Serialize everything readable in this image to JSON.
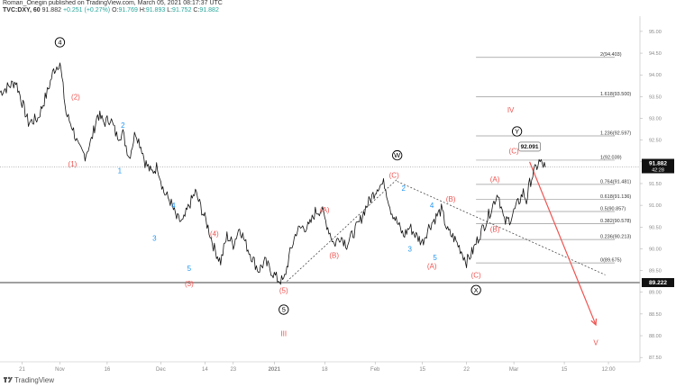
{
  "header": {
    "line1": "Roman_Onegin published on TradingView.com, March 05, 2021 08:17:37 UTC",
    "symbol": "TVC:DXY, 60",
    "last": "91.882",
    "change": "+0.251 (+0.27%)",
    "o_label": "O:",
    "o_value": "91.769",
    "h_label": "H:",
    "h_value": "91.893",
    "l_label": "L:",
    "l_value": "91.752",
    "c_label": "C:",
    "c_value": "91.882"
  },
  "branding": {
    "text": "TradingView"
  },
  "colors": {
    "price": "#111111",
    "red": "#ef5350",
    "blue": "#2196f3",
    "axis": "#888888",
    "black": "#000000",
    "fib": "#999999"
  },
  "chart_data": {
    "type": "line",
    "title": "TVC:DXY, 60",
    "x_axis_labels": [
      {
        "t": 2,
        "label": "21"
      },
      {
        "t": 14,
        "label": "Nov"
      },
      {
        "t": 29,
        "label": "16"
      },
      {
        "t": 46,
        "label": "Dec"
      },
      {
        "t": 60,
        "label": "14"
      },
      {
        "t": 69,
        "label": "23"
      },
      {
        "t": 82,
        "label": "2021"
      },
      {
        "t": 98,
        "label": "18"
      },
      {
        "t": 114,
        "label": "Feb"
      },
      {
        "t": 129,
        "label": "15"
      },
      {
        "t": 143,
        "label": "22"
      },
      {
        "t": 158,
        "label": "Mar"
      },
      {
        "t": 174,
        "label": "15"
      },
      {
        "t": 188,
        "label": "12:00"
      }
    ],
    "xlim": [
      -5,
      198
    ],
    "y_ticks": [
      87.5,
      88.0,
      88.5,
      89.0,
      89.5,
      90.0,
      90.5,
      91.0,
      91.5,
      92.0,
      92.5,
      93.0,
      93.5,
      94.0,
      94.5,
      95.0
    ],
    "ylim": [
      87.4,
      95.35
    ],
    "price_x": [
      -5,
      0,
      4,
      7,
      10,
      12,
      14,
      16,
      18,
      20,
      22,
      24,
      26,
      28,
      30,
      32,
      34,
      36,
      38,
      40,
      41,
      43,
      45,
      47,
      49,
      51,
      53,
      55,
      57,
      59,
      61,
      63,
      65,
      67,
      69,
      71,
      73,
      75,
      77,
      79,
      81,
      83,
      85,
      87,
      89,
      91,
      93,
      95,
      97,
      99,
      101,
      103,
      105,
      107,
      109,
      111,
      113,
      115,
      117,
      119,
      121,
      123,
      125,
      127,
      129,
      131,
      133,
      135,
      137,
      139,
      141,
      143,
      145,
      147,
      149,
      151,
      153,
      155,
      157,
      159,
      161,
      162,
      163,
      164,
      165,
      166,
      167,
      168
    ],
    "price_y": [
      93.6,
      93.85,
      92.9,
      93.0,
      93.6,
      94.1,
      94.3,
      93.1,
      92.8,
      92.3,
      92.15,
      92.5,
      93.1,
      92.9,
      93.0,
      92.6,
      92.65,
      92.1,
      92.7,
      92.3,
      92.0,
      91.75,
      91.9,
      91.3,
      91.1,
      90.7,
      90.6,
      91.0,
      91.3,
      90.9,
      90.5,
      90.0,
      89.7,
      90.3,
      90.1,
      90.5,
      90.1,
      89.8,
      89.5,
      89.7,
      89.5,
      89.3,
      89.25,
      89.9,
      90.4,
      90.5,
      90.5,
      90.85,
      90.9,
      90.5,
      90.1,
      90.3,
      90.1,
      90.35,
      90.6,
      90.95,
      91.2,
      91.45,
      91.5,
      90.9,
      90.6,
      90.3,
      90.5,
      90.3,
      90.15,
      90.5,
      90.7,
      90.9,
      90.4,
      90.25,
      90.0,
      89.7,
      89.95,
      90.3,
      90.6,
      90.95,
      91.3,
      90.6,
      90.7,
      91.0,
      91.3,
      91.1,
      91.5,
      91.7,
      91.85,
      92.0,
      91.95,
      91.88
    ],
    "current_price": {
      "value": 91.882,
      "label": "91.882",
      "countdown": "42:28"
    },
    "support_line": {
      "value": 89.222,
      "label": "89.222"
    },
    "fib_levels": [
      {
        "value": 94.403,
        "label": "2(94.403)"
      },
      {
        "value": 93.5,
        "label": "1.618(93.500)"
      },
      {
        "value": 92.597,
        "label": "1.236(92.597)"
      },
      {
        "value": 92.039,
        "label": "1(92.039)"
      },
      {
        "value": 91.481,
        "label": "0.764(91.481)"
      },
      {
        "value": 91.136,
        "label": "0.618(91.136)"
      },
      {
        "value": 90.857,
        "label": "0.5(90.857)"
      },
      {
        "value": 90.578,
        "label": "0.382(90.578)"
      },
      {
        "value": 90.213,
        "label": "0.236(90.213)"
      },
      {
        "value": 89.675,
        "label": "0(89.675)"
      }
    ],
    "fib_range_t": [
      146,
      190
    ],
    "waves": [
      {
        "t": 14,
        "v": 94.75,
        "label": "4",
        "color": "black",
        "circled": true
      },
      {
        "t": 19,
        "v": 93.5,
        "label": "(2)",
        "color": "red"
      },
      {
        "t": 18,
        "v": 91.95,
        "label": "(1)",
        "color": "red"
      },
      {
        "t": 34,
        "v": 92.85,
        "label": "2",
        "color": "blue"
      },
      {
        "t": 33,
        "v": 91.8,
        "label": "1",
        "color": "blue"
      },
      {
        "t": 50,
        "v": 91.0,
        "label": "4",
        "color": "blue"
      },
      {
        "t": 44,
        "v": 90.25,
        "label": "3",
        "color": "blue"
      },
      {
        "t": 63,
        "v": 90.35,
        "label": "(4)",
        "color": "red"
      },
      {
        "t": 55,
        "v": 89.55,
        "label": "5",
        "color": "blue"
      },
      {
        "t": 55,
        "v": 89.2,
        "label": "(3)",
        "color": "red"
      },
      {
        "t": 85,
        "v": 89.05,
        "label": "(5)",
        "color": "red"
      },
      {
        "t": 85,
        "v": 88.6,
        "label": "5",
        "color": "black",
        "circled": true
      },
      {
        "t": 85,
        "v": 88.05,
        "label": "III",
        "color": "red"
      },
      {
        "t": 98,
        "v": 90.9,
        "label": "(A)",
        "color": "red"
      },
      {
        "t": 101,
        "v": 89.85,
        "label": "(B)",
        "color": "red"
      },
      {
        "t": 121,
        "v": 92.15,
        "label": "W",
        "color": "black",
        "circled": true
      },
      {
        "t": 120,
        "v": 91.7,
        "label": "(C)",
        "color": "red"
      },
      {
        "t": 123,
        "v": 91.4,
        "label": "2",
        "color": "blue"
      },
      {
        "t": 132,
        "v": 91.0,
        "label": "4",
        "color": "blue"
      },
      {
        "t": 138,
        "v": 91.15,
        "label": "(B)",
        "color": "red"
      },
      {
        "t": 125,
        "v": 90.0,
        "label": "3",
        "color": "blue"
      },
      {
        "t": 133,
        "v": 89.8,
        "label": "5",
        "color": "blue"
      },
      {
        "t": 132,
        "v": 89.6,
        "label": "(A)",
        "color": "red"
      },
      {
        "t": 152,
        "v": 91.6,
        "label": "(A)",
        "color": "red"
      },
      {
        "t": 152,
        "v": 90.45,
        "label": "(B)",
        "color": "red"
      },
      {
        "t": 146,
        "v": 89.4,
        "label": "(C)",
        "color": "red"
      },
      {
        "t": 146,
        "v": 89.05,
        "label": "X",
        "color": "black",
        "circled": true
      },
      {
        "t": 158,
        "v": 92.25,
        "label": "(C)",
        "color": "red"
      },
      {
        "t": 159,
        "v": 92.7,
        "label": "Y",
        "color": "black",
        "circled": true
      },
      {
        "t": 157,
        "v": 93.2,
        "label": "IV",
        "color": "red"
      },
      {
        "t": 184,
        "v": 87.85,
        "label": "V",
        "color": "red"
      }
    ],
    "price_callout": {
      "t": 163,
      "v": 92.35,
      "label": "92.091"
    },
    "trend_lines": [
      {
        "t1": 86,
        "v1": 89.25,
        "t2": 121,
        "v2": 91.6,
        "style": "dashed"
      },
      {
        "t1": 121,
        "v1": 91.55,
        "t2": 187,
        "v2": 89.4,
        "style": "dashed"
      }
    ],
    "projection": {
      "t1": 163,
      "v1": 92.0,
      "t2": 184,
      "v2": 88.25
    }
  }
}
